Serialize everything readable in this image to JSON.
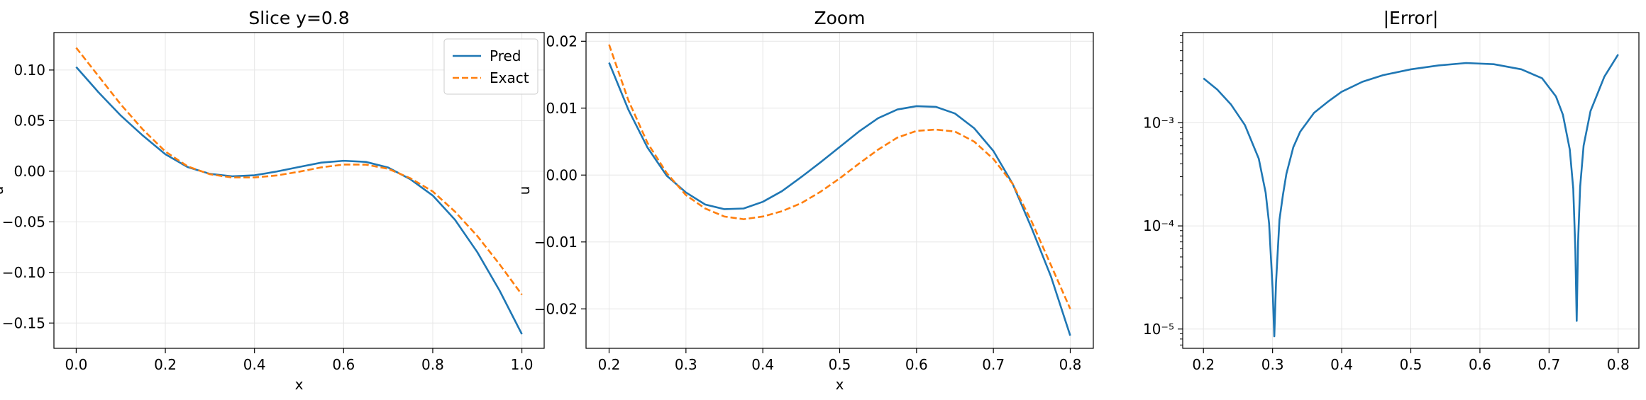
{
  "chart_data": [
    {
      "type": "line",
      "title": "Slice y=0.8",
      "xlabel": "x",
      "ylabel": "u",
      "xlim": [
        -0.05,
        1.05
      ],
      "ylim": [
        -0.175,
        0.137
      ],
      "xticks": [
        0.0,
        0.2,
        0.4,
        0.6,
        0.8,
        1.0
      ],
      "xtick_labels": [
        "0.0",
        "0.2",
        "0.4",
        "0.6",
        "0.8",
        "1.0"
      ],
      "yticks": [
        -0.15,
        -0.1,
        -0.05,
        0.0,
        0.05,
        0.1
      ],
      "ytick_labels": [
        "−0.15",
        "−0.10",
        "−0.05",
        "0.00",
        "0.05",
        "0.10"
      ],
      "grid": true,
      "legend": "top-right",
      "series": [
        {
          "name": "Pred",
          "color": "#1f77b4",
          "style": "solid",
          "x": [
            0.0,
            0.05,
            0.1,
            0.15,
            0.2,
            0.25,
            0.3,
            0.35,
            0.4,
            0.45,
            0.5,
            0.55,
            0.6,
            0.65,
            0.7,
            0.75,
            0.8,
            0.85,
            0.9,
            0.95,
            1.0
          ],
          "y": [
            0.103,
            0.078,
            0.055,
            0.035,
            0.0168,
            0.0041,
            -0.0026,
            -0.005,
            -0.004,
            -0.0003,
            0.0042,
            0.0085,
            0.0103,
            0.0092,
            0.0036,
            -0.008,
            -0.024,
            -0.048,
            -0.08,
            -0.118,
            -0.161
          ]
        },
        {
          "name": "Exact",
          "color": "#ff7f0e",
          "style": "dashed",
          "x": [
            0.0,
            0.05,
            0.1,
            0.15,
            0.2,
            0.25,
            0.3,
            0.35,
            0.4,
            0.45,
            0.5,
            0.55,
            0.6,
            0.65,
            0.7,
            0.75,
            0.8,
            0.85,
            0.9,
            0.95,
            1.0
          ],
          "y": [
            0.122,
            0.094,
            0.066,
            0.041,
            0.0195,
            0.0048,
            -0.003,
            -0.0062,
            -0.0062,
            -0.0042,
            -0.0005,
            0.0038,
            0.0066,
            0.0065,
            0.0024,
            -0.007,
            -0.02,
            -0.04,
            -0.064,
            -0.092,
            -0.122
          ]
        }
      ]
    },
    {
      "type": "line",
      "title": "Zoom",
      "xlabel": "x",
      "ylabel": "u",
      "xlim": [
        0.17,
        0.83
      ],
      "ylim": [
        -0.0259,
        0.0213
      ],
      "xticks": [
        0.2,
        0.3,
        0.4,
        0.5,
        0.6,
        0.7,
        0.8
      ],
      "xtick_labels": [
        "0.2",
        "0.3",
        "0.4",
        "0.5",
        "0.6",
        "0.7",
        "0.8"
      ],
      "yticks": [
        -0.02,
        -0.01,
        0.0,
        0.01,
        0.02
      ],
      "ytick_labels": [
        "−0.02",
        "−0.01",
        "0.00",
        "0.01",
        "0.02"
      ],
      "grid": true,
      "series": [
        {
          "name": "Pred",
          "color": "#1f77b4",
          "style": "solid",
          "x": [
            0.2,
            0.225,
            0.25,
            0.275,
            0.3,
            0.325,
            0.35,
            0.375,
            0.4,
            0.425,
            0.45,
            0.475,
            0.5,
            0.525,
            0.55,
            0.575,
            0.6,
            0.625,
            0.65,
            0.675,
            0.7,
            0.725,
            0.75,
            0.775,
            0.8
          ],
          "y": [
            0.0168,
            0.0098,
            0.0041,
            -0.0001,
            -0.0026,
            -0.0044,
            -0.0051,
            -0.005,
            -0.004,
            -0.0024,
            -0.0003,
            0.0019,
            0.0042,
            0.0065,
            0.0085,
            0.0098,
            0.0103,
            0.0102,
            0.0092,
            0.007,
            0.0036,
            -0.0013,
            -0.008,
            -0.0152,
            -0.024
          ]
        },
        {
          "name": "Exact",
          "color": "#ff7f0e",
          "style": "dashed",
          "x": [
            0.2,
            0.225,
            0.25,
            0.275,
            0.3,
            0.325,
            0.35,
            0.375,
            0.4,
            0.425,
            0.45,
            0.475,
            0.5,
            0.525,
            0.55,
            0.575,
            0.6,
            0.625,
            0.65,
            0.675,
            0.7,
            0.725,
            0.75,
            0.775,
            0.8
          ],
          "y": [
            0.0195,
            0.0112,
            0.0048,
            0.0003,
            -0.003,
            -0.005,
            -0.0062,
            -0.0066,
            -0.0062,
            -0.0054,
            -0.0042,
            -0.0025,
            -0.0005,
            0.0017,
            0.0038,
            0.0056,
            0.0066,
            0.0068,
            0.0065,
            0.005,
            0.0024,
            -0.0013,
            -0.007,
            -0.0135,
            -0.02
          ]
        }
      ]
    },
    {
      "type": "line",
      "title": "|Error|",
      "xlabel": "",
      "ylabel": "",
      "yscale": "log",
      "xlim": [
        0.17,
        0.83
      ],
      "ylim": [
        6.5e-06,
        0.0075
      ],
      "xticks": [
        0.2,
        0.3,
        0.4,
        0.5,
        0.6,
        0.7,
        0.8
      ],
      "xtick_labels": [
        "0.2",
        "0.3",
        "0.4",
        "0.5",
        "0.6",
        "0.7",
        "0.8"
      ],
      "yticks": [
        1e-05,
        0.0001,
        0.001
      ],
      "ytick_labels": [
        "10⁻⁵",
        "10⁻⁴",
        "10⁻³"
      ],
      "grid": true,
      "series": [
        {
          "name": "",
          "color": "#1f77b4",
          "style": "solid",
          "x": [
            0.2,
            0.22,
            0.24,
            0.26,
            0.28,
            0.29,
            0.295,
            0.3,
            0.3025,
            0.305,
            0.31,
            0.315,
            0.32,
            0.33,
            0.34,
            0.36,
            0.38,
            0.4,
            0.43,
            0.46,
            0.5,
            0.54,
            0.58,
            0.62,
            0.66,
            0.69,
            0.71,
            0.72,
            0.73,
            0.735,
            0.738,
            0.74,
            0.742,
            0.745,
            0.75,
            0.76,
            0.78,
            0.8
          ],
          "y": [
            0.0027,
            0.0021,
            0.0015,
            0.00095,
            0.00045,
            0.00021,
            0.000105,
            2.5e-05,
            8.5e-06,
            2.8e-05,
            0.000115,
            0.0002,
            0.00032,
            0.00058,
            0.00082,
            0.00125,
            0.0016,
            0.002,
            0.0025,
            0.0029,
            0.0033,
            0.0036,
            0.0038,
            0.0037,
            0.0033,
            0.0027,
            0.0018,
            0.0012,
            0.00055,
            0.00023,
            6e-05,
            1.2e-05,
            7e-05,
            0.00024,
            0.0006,
            0.0013,
            0.0028,
            0.0046
          ]
        }
      ]
    }
  ]
}
